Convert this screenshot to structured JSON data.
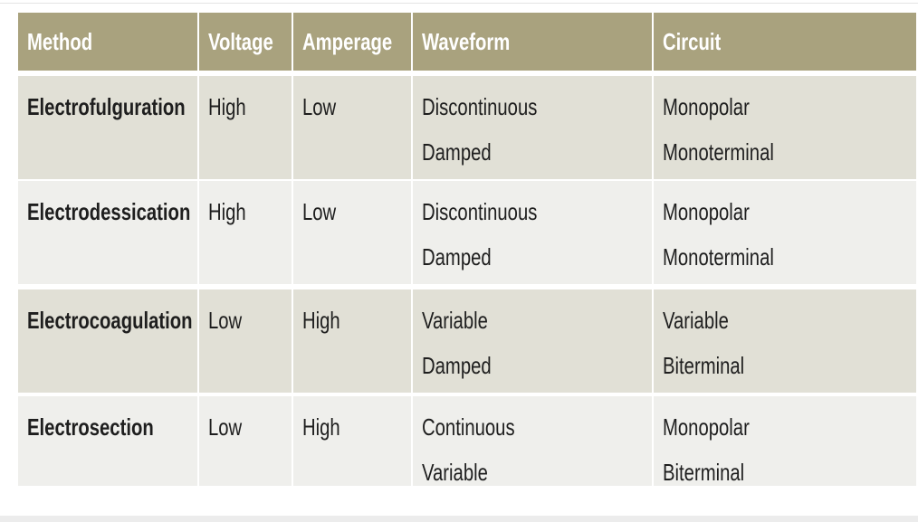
{
  "header": {
    "columns": [
      "Method",
      "Voltage",
      "Amperage",
      "Waveform",
      "Circuit"
    ]
  },
  "table": {
    "rows": [
      [
        [
          "Electrofulguration"
        ],
        [
          "High"
        ],
        [
          "Low"
        ],
        [
          "Discontinuous",
          "Damped"
        ],
        [
          "Monopolar",
          "Monoterminal"
        ]
      ],
      [
        [
          "Electrodessication"
        ],
        [
          "High"
        ],
        [
          "Low"
        ],
        [
          "Discontinuous",
          "Damped"
        ],
        [
          "Monopolar",
          "Monoterminal"
        ]
      ],
      [
        [
          "Electrocoagulation"
        ],
        [
          "Low"
        ],
        [
          "High"
        ],
        [
          "Variable",
          "Damped"
        ],
        [
          "Variable",
          "Biterminal"
        ]
      ],
      [
        [
          "Electrosection"
        ],
        [
          "Low"
        ],
        [
          "High"
        ],
        [
          "Continuous",
          "Variable"
        ],
        [
          "Monopolar",
          "Biterminal"
        ]
      ]
    ]
  }
}
